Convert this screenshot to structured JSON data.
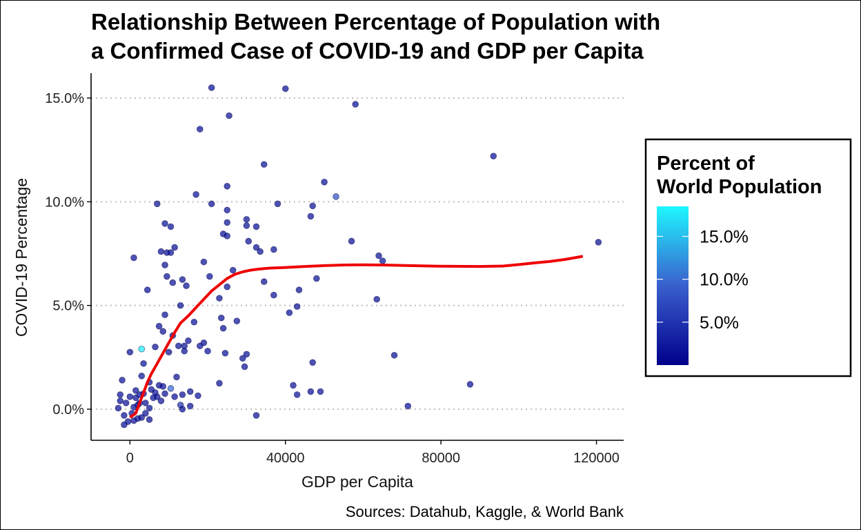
{
  "chart_data": {
    "type": "scatter",
    "title": "Relationship Between Percentage of Population with a Confirmed Case of COVID-19 and GDP per Capita",
    "title_lines": [
      "Relationship Between Percentage of Population with",
      "a Confirmed Case of COVID-19 and GDP per Capita"
    ],
    "xlabel": "GDP per Capita",
    "ylabel": "COVID-19 Percentage",
    "caption": "Sources: Datahub, Kaggle, & World Bank",
    "xlim": [
      -10000,
      127000
    ],
    "ylim": [
      -1.5,
      16.2
    ],
    "x_ticks": [
      0,
      40000,
      80000,
      120000
    ],
    "x_tick_labels": [
      "0",
      "40000",
      "80000",
      "120000"
    ],
    "y_ticks": [
      0,
      5,
      10,
      15
    ],
    "y_tick_labels": [
      "0.0%",
      "5.0%",
      "10.0%",
      "15.0%"
    ],
    "grid": "horizontal dotted major gridlines",
    "legend": {
      "title_lines": [
        "Percent of",
        "World Population"
      ],
      "position": "right",
      "type": "continuous colorbar",
      "range": [
        0,
        18.5
      ],
      "ticks": [
        5,
        10,
        15
      ],
      "tick_labels": [
        "5.0%",
        "10.0%",
        "15.0%"
      ],
      "low_color": "#00008b",
      "mid_color": "#3a5fcd",
      "high_color": "#1ef7ff"
    },
    "trend_color": "#ee0000",
    "trend_line": [
      [
        0,
        -0.4
      ],
      [
        1500,
        -0.2
      ],
      [
        2500,
        0.3
      ],
      [
        3500,
        0.8
      ],
      [
        4500,
        1.3
      ],
      [
        5500,
        1.7
      ],
      [
        7000,
        2.2
      ],
      [
        8500,
        2.7
      ],
      [
        10000,
        3.2
      ],
      [
        11500,
        3.7
      ],
      [
        13000,
        4.15
      ],
      [
        15000,
        4.5
      ],
      [
        17000,
        4.9
      ],
      [
        19000,
        5.3
      ],
      [
        21000,
        5.7
      ],
      [
        23000,
        6.0
      ],
      [
        25000,
        6.3
      ],
      [
        27000,
        6.5
      ],
      [
        29000,
        6.62
      ],
      [
        31000,
        6.7
      ],
      [
        33000,
        6.75
      ],
      [
        36000,
        6.8
      ],
      [
        40000,
        6.83
      ],
      [
        45000,
        6.88
      ],
      [
        50000,
        6.92
      ],
      [
        55000,
        6.95
      ],
      [
        60000,
        6.96
      ],
      [
        65000,
        6.95
      ],
      [
        70000,
        6.93
      ],
      [
        80000,
        6.89
      ],
      [
        90000,
        6.88
      ],
      [
        96000,
        6.9
      ],
      [
        100000,
        6.97
      ],
      [
        104000,
        7.05
      ],
      [
        108000,
        7.12
      ],
      [
        112000,
        7.22
      ],
      [
        116500,
        7.37
      ]
    ],
    "points": [
      {
        "x": 21000,
        "y": 15.5,
        "pop": 1.5
      },
      {
        "x": 40000,
        "y": 15.45,
        "pop": 1.5
      },
      {
        "x": 58000,
        "y": 14.7,
        "pop": 1.5
      },
      {
        "x": 25500,
        "y": 14.15,
        "pop": 1.5
      },
      {
        "x": 18000,
        "y": 13.5,
        "pop": 1.5
      },
      {
        "x": 93500,
        "y": 12.2,
        "pop": 1.5
      },
      {
        "x": 34500,
        "y": 11.8,
        "pop": 1.5
      },
      {
        "x": 50000,
        "y": 10.95,
        "pop": 1.5
      },
      {
        "x": 25000,
        "y": 10.75,
        "pop": 1.5
      },
      {
        "x": 17000,
        "y": 10.35,
        "pop": 1.5
      },
      {
        "x": 53000,
        "y": 10.25,
        "pop": 8.0
      },
      {
        "x": 7000,
        "y": 9.9,
        "pop": 1.5
      },
      {
        "x": 21000,
        "y": 9.9,
        "pop": 1.5
      },
      {
        "x": 38000,
        "y": 9.9,
        "pop": 1.5
      },
      {
        "x": 47000,
        "y": 9.8,
        "pop": 1.5
      },
      {
        "x": 25000,
        "y": 9.6,
        "pop": 1.5
      },
      {
        "x": 46500,
        "y": 9.3,
        "pop": 1.5
      },
      {
        "x": 30000,
        "y": 9.15,
        "pop": 1.5
      },
      {
        "x": 25000,
        "y": 9.0,
        "pop": 1.5
      },
      {
        "x": 9000,
        "y": 8.95,
        "pop": 1.5
      },
      {
        "x": 30000,
        "y": 8.85,
        "pop": 1.5
      },
      {
        "x": 32500,
        "y": 8.8,
        "pop": 1.5
      },
      {
        "x": 10500,
        "y": 8.8,
        "pop": 1.5
      },
      {
        "x": 24000,
        "y": 8.45,
        "pop": 1.5
      },
      {
        "x": 25000,
        "y": 8.35,
        "pop": 1.5
      },
      {
        "x": 57000,
        "y": 8.1,
        "pop": 1.5
      },
      {
        "x": 30500,
        "y": 8.1,
        "pop": 1.5
      },
      {
        "x": 120500,
        "y": 8.05,
        "pop": 1.5
      },
      {
        "x": 11500,
        "y": 7.8,
        "pop": 1.5
      },
      {
        "x": 32500,
        "y": 7.8,
        "pop": 1.5
      },
      {
        "x": 33500,
        "y": 7.6,
        "pop": 1.5
      },
      {
        "x": 37000,
        "y": 7.7,
        "pop": 1.5
      },
      {
        "x": 8000,
        "y": 7.6,
        "pop": 1.5
      },
      {
        "x": 9500,
        "y": 7.55,
        "pop": 1.5
      },
      {
        "x": 10500,
        "y": 7.55,
        "pop": 1.5
      },
      {
        "x": 64000,
        "y": 7.4,
        "pop": 1.5
      },
      {
        "x": 1000,
        "y": 7.3,
        "pop": 1.5
      },
      {
        "x": 19000,
        "y": 7.1,
        "pop": 1.5
      },
      {
        "x": 65000,
        "y": 7.15,
        "pop": 1.5
      },
      {
        "x": 9000,
        "y": 6.95,
        "pop": 1.5
      },
      {
        "x": 26500,
        "y": 6.7,
        "pop": 1.5
      },
      {
        "x": 20500,
        "y": 6.4,
        "pop": 1.5
      },
      {
        "x": 9500,
        "y": 6.4,
        "pop": 1.5
      },
      {
        "x": 48000,
        "y": 6.3,
        "pop": 1.5
      },
      {
        "x": 13500,
        "y": 6.25,
        "pop": 1.5
      },
      {
        "x": 11000,
        "y": 6.1,
        "pop": 1.5
      },
      {
        "x": 34500,
        "y": 6.15,
        "pop": 1.5
      },
      {
        "x": 25000,
        "y": 5.9,
        "pop": 1.5
      },
      {
        "x": 14500,
        "y": 5.95,
        "pop": 1.5
      },
      {
        "x": 4500,
        "y": 5.75,
        "pop": 1.5
      },
      {
        "x": 43500,
        "y": 5.75,
        "pop": 1.5
      },
      {
        "x": 37000,
        "y": 5.5,
        "pop": 1.5
      },
      {
        "x": 23000,
        "y": 5.35,
        "pop": 1.5
      },
      {
        "x": 63500,
        "y": 5.3,
        "pop": 1.5
      },
      {
        "x": 13000,
        "y": 5.0,
        "pop": 1.5
      },
      {
        "x": 43000,
        "y": 4.95,
        "pop": 1.5
      },
      {
        "x": 41000,
        "y": 4.65,
        "pop": 1.5
      },
      {
        "x": 9000,
        "y": 4.55,
        "pop": 1.5
      },
      {
        "x": 23500,
        "y": 4.4,
        "pop": 1.5
      },
      {
        "x": 16500,
        "y": 4.2,
        "pop": 1.5
      },
      {
        "x": 27500,
        "y": 4.25,
        "pop": 1.5
      },
      {
        "x": 7500,
        "y": 4.0,
        "pop": 1.5
      },
      {
        "x": 8500,
        "y": 3.75,
        "pop": 1.5
      },
      {
        "x": 11000,
        "y": 3.55,
        "pop": 1.5
      },
      {
        "x": 24000,
        "y": 3.9,
        "pop": 1.5
      },
      {
        "x": 19000,
        "y": 3.2,
        "pop": 1.5
      },
      {
        "x": 15000,
        "y": 3.3,
        "pop": 1.5
      },
      {
        "x": 12500,
        "y": 3.05,
        "pop": 1.5
      },
      {
        "x": 14000,
        "y": 3.05,
        "pop": 1.5
      },
      {
        "x": 18000,
        "y": 3.05,
        "pop": 1.5
      },
      {
        "x": 6500,
        "y": 3.0,
        "pop": 1.5
      },
      {
        "x": 3000,
        "y": 2.9,
        "pop": 18.0
      },
      {
        "x": 0,
        "y": 2.75,
        "pop": 1.5
      },
      {
        "x": 10000,
        "y": 2.75,
        "pop": 1.5
      },
      {
        "x": 14000,
        "y": 2.8,
        "pop": 1.5
      },
      {
        "x": 20000,
        "y": 2.8,
        "pop": 1.5
      },
      {
        "x": 24500,
        "y": 2.7,
        "pop": 1.5
      },
      {
        "x": 29000,
        "y": 2.45,
        "pop": 1.5
      },
      {
        "x": 30000,
        "y": 2.65,
        "pop": 1.5
      },
      {
        "x": 68000,
        "y": 2.6,
        "pop": 1.5
      },
      {
        "x": 47000,
        "y": 2.25,
        "pop": 1.5
      },
      {
        "x": 3500,
        "y": 2.2,
        "pop": 1.5
      },
      {
        "x": 29500,
        "y": 2.05,
        "pop": 1.5
      },
      {
        "x": 3000,
        "y": 1.6,
        "pop": 1.5
      },
      {
        "x": 12000,
        "y": 1.55,
        "pop": 1.5
      },
      {
        "x": -2000,
        "y": 1.4,
        "pop": 1.5
      },
      {
        "x": 5000,
        "y": 1.3,
        "pop": 1.5
      },
      {
        "x": 23000,
        "y": 1.25,
        "pop": 1.5
      },
      {
        "x": 7500,
        "y": 1.15,
        "pop": 1.5
      },
      {
        "x": 42000,
        "y": 1.15,
        "pop": 1.5
      },
      {
        "x": 87500,
        "y": 1.2,
        "pop": 1.5
      },
      {
        "x": 10500,
        "y": 1.0,
        "pop": 10.0
      },
      {
        "x": 5500,
        "y": 0.95,
        "pop": 1.5
      },
      {
        "x": 8500,
        "y": 1.1,
        "pop": 1.5
      },
      {
        "x": 15500,
        "y": 0.85,
        "pop": 1.5
      },
      {
        "x": 3500,
        "y": 0.75,
        "pop": 1.5
      },
      {
        "x": 46500,
        "y": 0.85,
        "pop": 1.5
      },
      {
        "x": 49000,
        "y": 0.85,
        "pop": 1.5
      },
      {
        "x": 43000,
        "y": 0.7,
        "pop": 1.5
      },
      {
        "x": 17500,
        "y": 0.65,
        "pop": 1.5
      },
      {
        "x": 13500,
        "y": 0.7,
        "pop": 1.5
      },
      {
        "x": -2500,
        "y": 0.7,
        "pop": 1.5
      },
      {
        "x": 1500,
        "y": 0.55,
        "pop": 1.5
      },
      {
        "x": 6000,
        "y": 0.55,
        "pop": 1.5
      },
      {
        "x": 9000,
        "y": 0.75,
        "pop": 1.5
      },
      {
        "x": 11500,
        "y": 0.6,
        "pop": 1.5
      },
      {
        "x": -1000,
        "y": 0.3,
        "pop": 1.5
      },
      {
        "x": 2500,
        "y": 0.3,
        "pop": 1.5
      },
      {
        "x": 13000,
        "y": 0.2,
        "pop": 5.0
      },
      {
        "x": 71500,
        "y": 0.15,
        "pop": 1.5
      },
      {
        "x": 15500,
        "y": 0.15,
        "pop": 1.5
      },
      {
        "x": -3000,
        "y": 0.05,
        "pop": 1.5
      },
      {
        "x": 5000,
        "y": 0.05,
        "pop": 1.5
      },
      {
        "x": 13500,
        "y": 0.0,
        "pop": 1.5
      },
      {
        "x": 500,
        "y": -0.2,
        "pop": 1.5
      },
      {
        "x": 4000,
        "y": -0.2,
        "pop": 1.5
      },
      {
        "x": -1500,
        "y": -0.3,
        "pop": 1.5
      },
      {
        "x": 2000,
        "y": -0.45,
        "pop": 1.5
      },
      {
        "x": 5000,
        "y": -0.5,
        "pop": 1.5
      },
      {
        "x": 32500,
        "y": -0.3,
        "pop": 1.5
      },
      {
        "x": -500,
        "y": -0.6,
        "pop": 1.5
      },
      {
        "x": 1000,
        "y": -0.55,
        "pop": 1.5
      },
      {
        "x": 3000,
        "y": -0.4,
        "pop": 1.5
      },
      {
        "x": -1500,
        "y": -0.75,
        "pop": 1.5
      },
      {
        "x": 0,
        "y": 0.6,
        "pop": 1.5
      },
      {
        "x": 1500,
        "y": 0.9,
        "pop": 1.5
      },
      {
        "x": 2500,
        "y": 0.7,
        "pop": 1.5
      },
      {
        "x": 4000,
        "y": 0.3,
        "pop": 1.5
      },
      {
        "x": 6500,
        "y": 0.8,
        "pop": 1.5
      },
      {
        "x": 7000,
        "y": 0.6,
        "pop": 1.5
      },
      {
        "x": 8000,
        "y": 0.4,
        "pop": 1.5
      },
      {
        "x": -2500,
        "y": 0.4,
        "pop": 1.5
      },
      {
        "x": 1000,
        "y": 0.1,
        "pop": 1.5
      },
      {
        "x": 2000,
        "y": 0.2,
        "pop": 1.5
      }
    ]
  }
}
